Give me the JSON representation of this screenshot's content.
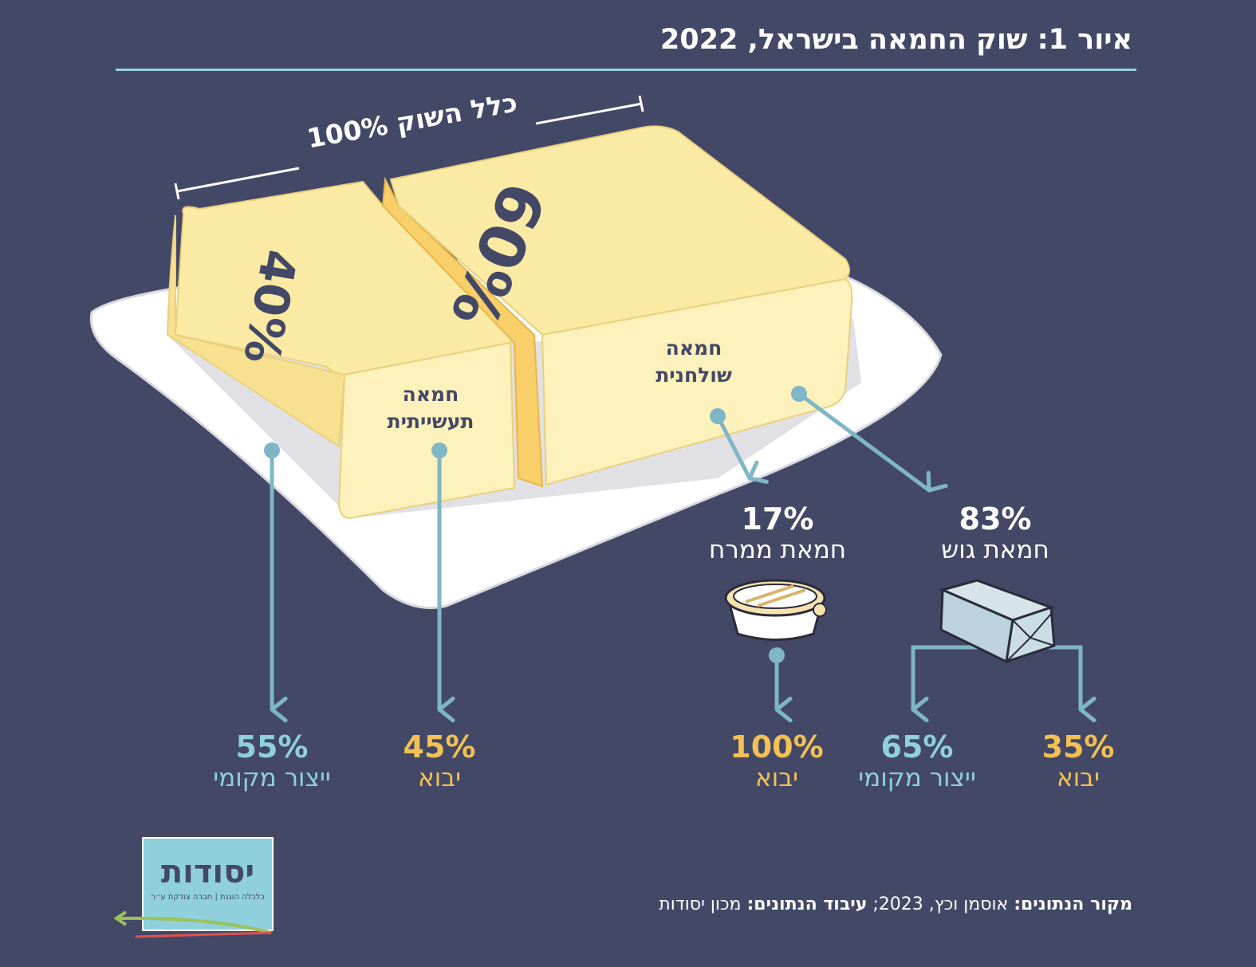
{
  "title": "איור 1: שוק החמאה בישראל, 2022",
  "market_total": "כלל השוק 100%",
  "segments": {
    "industrial": {
      "share": "40%",
      "label_line1": "חמאה",
      "label_line2": "תעשייתית"
    },
    "table": {
      "share": "60%",
      "label_line1": "חמאה",
      "label_line2": "שולחנית"
    }
  },
  "table_subtypes": {
    "spread": {
      "share": "17%",
      "label": "חמאת ממרח"
    },
    "block": {
      "share": "83%",
      "label": "חמאת גוש"
    }
  },
  "breakdown": {
    "industrial_local": {
      "share": "55%",
      "label": "ייצור מקומי"
    },
    "industrial_import": {
      "share": "45%",
      "label": "יבוא"
    },
    "spread_import": {
      "share": "100%",
      "label": "יבוא"
    },
    "block_local": {
      "share": "65%",
      "label": "ייצור מקומי"
    },
    "block_import": {
      "share": "35%",
      "label": "יבוא"
    }
  },
  "logo": {
    "name": "יסודות",
    "tagline": "כלכלה הוגנת | חברה צודקת ע״ר"
  },
  "source": {
    "source_label": "מקור הנתונים:",
    "source_text": " אוסמן וכץ, 2023; ",
    "processing_label": "עיבוד הנתונים:",
    "processing_text": " מכון יסודות"
  },
  "colors": {
    "background": "#434867",
    "teal": "#8fd0dc",
    "gold": "#f3c153",
    "butter": "#fbeaa3",
    "butter_cut": "#f8cf68"
  }
}
